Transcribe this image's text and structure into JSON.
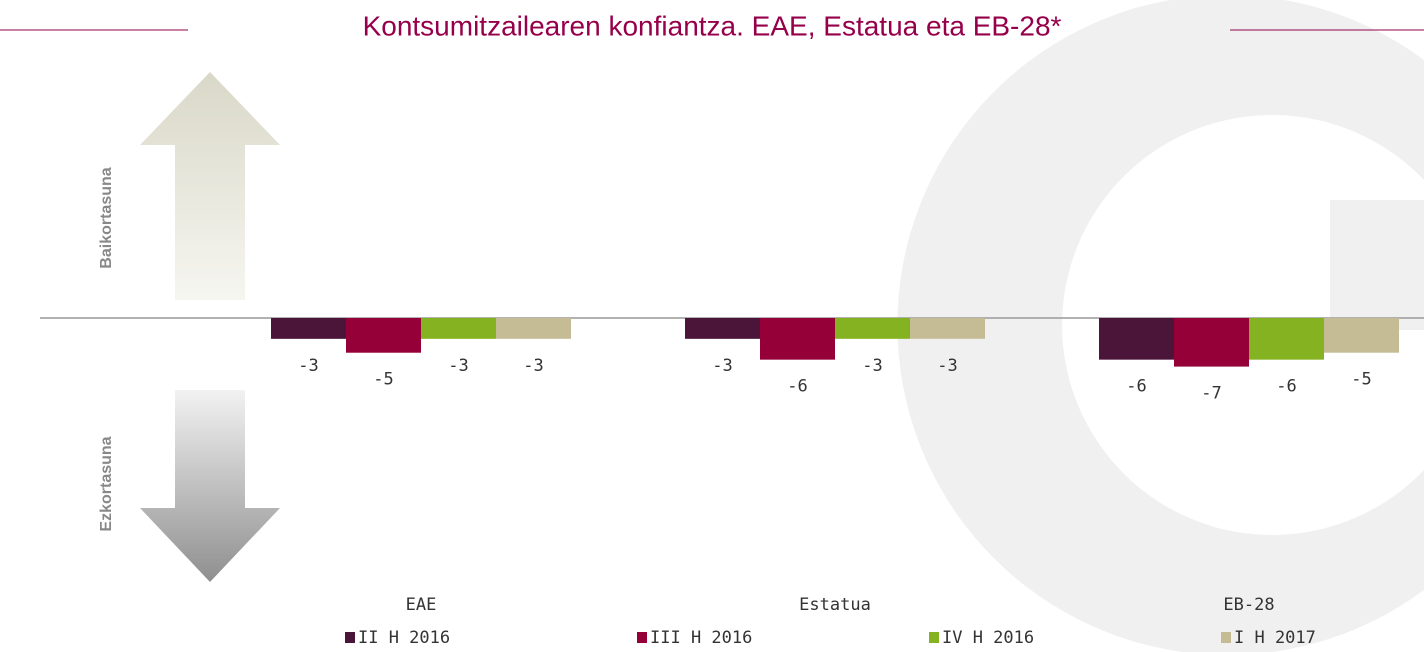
{
  "chart_data": {
    "type": "bar",
    "title": "Kontsumitzailearen konfiantza. EAE, Estatua eta EB-28*",
    "annotations": [
      "Baikortasuna",
      "Ezkortasuna"
    ],
    "categories": [
      "EAE",
      "Estatua",
      "EB-28"
    ],
    "series": [
      {
        "name": "II H 2016",
        "color": "#4a1538",
        "values": [
          -3,
          -3,
          -6
        ]
      },
      {
        "name": "III H 2016",
        "color": "#960038",
        "values": [
          -5,
          -6,
          -7
        ]
      },
      {
        "name": "IV H 2016",
        "color": "#84b220",
        "values": [
          -3,
          -3,
          -6
        ]
      },
      {
        "name": "I H 2017",
        "color": "#c5bc96",
        "values": [
          -3,
          -3,
          -5
        ]
      }
    ],
    "ylim": [
      -35,
      35
    ]
  }
}
